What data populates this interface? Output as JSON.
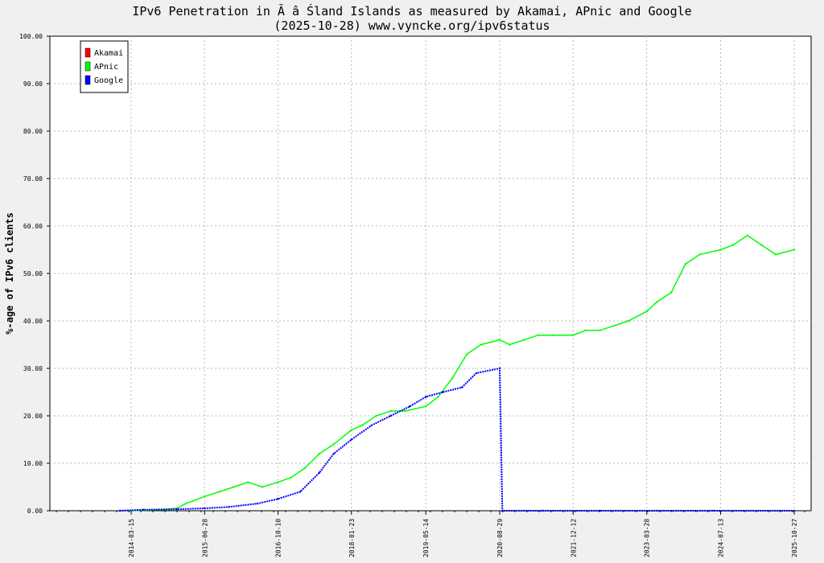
{
  "chart_data": {
    "type": "line",
    "title": "IPv6 Penetration in Ă â Śland Islands as measured by Akamai, APnic and Google",
    "subtitle": "(2025-10-28) www.vyncke.org/ipv6status",
    "ylabel": "%-age of IPv6 clients",
    "xlabel": "",
    "ylim": [
      0,
      100
    ],
    "yticks": [
      "0.00",
      "10.00",
      "20.00",
      "30.00",
      "40.00",
      "50.00",
      "60.00",
      "70.00",
      "80.00",
      "90.00",
      "100.00"
    ],
    "xticks": [
      "2014-03-15",
      "2015-06-28",
      "2016-10-10",
      "2018-01-23",
      "2019-05-14",
      "2020-08-29",
      "2021-12-12",
      "2023-03-28",
      "2024-07-13",
      "2025-10-27"
    ],
    "grid": true,
    "legend_position": "top-left",
    "colors": {
      "Akamai": "#ff0000",
      "APnic": "#00ff00",
      "Google": "#0000ff",
      "background": "#f0f0f0",
      "plot_background": "#ffffff"
    },
    "series": [
      {
        "name": "Akamai",
        "x": [],
        "values": []
      },
      {
        "name": "APnic",
        "x": [
          "2014-03-15",
          "2014-09-15",
          "2015-01-01",
          "2015-03-01",
          "2015-06-28",
          "2015-10-01",
          "2016-01-01",
          "2016-04-01",
          "2016-07-01",
          "2016-10-10",
          "2017-01-01",
          "2017-04-01",
          "2017-07-01",
          "2017-10-01",
          "2018-01-23",
          "2018-04-01",
          "2018-07-01",
          "2018-10-01",
          "2019-01-01",
          "2019-05-14",
          "2019-08-01",
          "2019-11-01",
          "2020-02-01",
          "2020-05-01",
          "2020-08-29",
          "2020-11-01",
          "2021-02-01",
          "2021-05-01",
          "2021-08-01",
          "2021-12-12",
          "2022-03-01",
          "2022-06-01",
          "2022-09-01",
          "2022-12-01",
          "2023-03-28",
          "2023-06-01",
          "2023-09-01",
          "2023-12-01",
          "2024-03-01",
          "2024-07-13",
          "2024-10-01",
          "2025-01-01",
          "2025-04-01",
          "2025-07-01",
          "2025-10-27"
        ],
        "values": [
          0,
          0.2,
          0.5,
          1.5,
          3,
          4,
          5,
          6,
          5,
          6,
          7,
          9,
          12,
          14,
          17,
          18,
          20,
          21,
          21,
          22,
          24,
          28,
          33,
          35,
          36,
          35,
          36,
          37,
          37,
          37,
          38,
          38,
          39,
          40,
          42,
          44,
          46,
          52,
          54,
          55,
          56,
          58,
          56,
          54,
          55
        ]
      },
      {
        "name": "Google",
        "x": [
          "2014-01-01",
          "2014-06-01",
          "2015-01-01",
          "2015-06-28",
          "2015-12-01",
          "2016-06-01",
          "2016-10-10",
          "2017-03-01",
          "2017-07-01",
          "2017-10-01",
          "2018-01-23",
          "2018-06-01",
          "2018-10-01",
          "2019-02-01",
          "2019-05-14",
          "2019-09-01",
          "2020-01-01",
          "2020-04-01",
          "2020-08-29",
          "2020-09-15",
          "2021-06-01",
          "2022-06-01",
          "2023-06-01",
          "2024-06-01",
          "2025-10-27"
        ],
        "values": [
          0,
          0.2,
          0.3,
          0.5,
          0.8,
          1.5,
          2.5,
          4,
          8,
          12,
          15,
          18,
          20,
          22,
          24,
          25,
          26,
          29,
          30,
          0,
          0,
          0,
          0,
          0,
          0
        ]
      }
    ]
  }
}
